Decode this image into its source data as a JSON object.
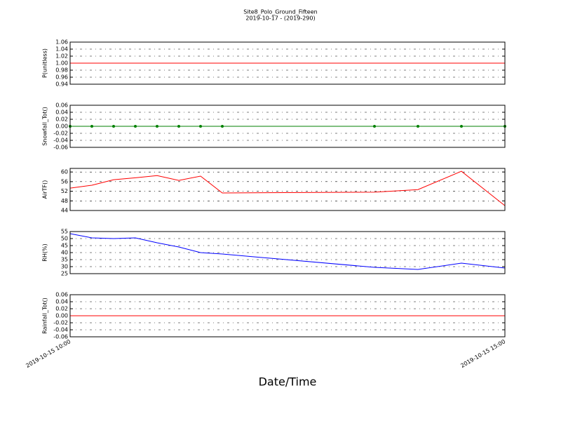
{
  "title": "Site8_Polo_Ground_Fifteen",
  "subtitle": "2019-10-17 - (2019-290)",
  "xlabel": "Date/Time",
  "chart_data": [
    {
      "type": "line",
      "ylabel": "P(unitless)",
      "color": "#ff0000",
      "grid": true,
      "markers": false,
      "x": [
        "2019-10-15 10:00",
        "2019-10-15 10:15",
        "2019-10-15 10:30",
        "2019-10-15 10:45",
        "2019-10-15 11:00",
        "2019-10-15 11:15",
        "2019-10-15 11:30",
        "2019-10-15 11:45",
        "2019-10-15 13:30",
        "2019-10-15 14:00",
        "2019-10-15 14:30",
        "2019-10-15 15:00"
      ],
      "values": [
        1,
        1,
        1,
        1,
        1,
        1,
        1,
        1,
        1,
        1,
        1,
        1
      ],
      "xlim": [
        "2019-10-15 10:00",
        "2019-10-15 15:00"
      ],
      "ylim": [
        0.94,
        1.06
      ],
      "yticks": [
        {
          "value": 0.94,
          "label": "0.94"
        },
        {
          "value": 0.96,
          "label": "0.96"
        },
        {
          "value": 0.98,
          "label": "0.98"
        },
        {
          "value": 1,
          "label": "1.00"
        },
        {
          "value": 1.02,
          "label": "1.02"
        },
        {
          "value": 1.04,
          "label": "1.04"
        },
        {
          "value": 1.06,
          "label": "1.06"
        }
      ]
    },
    {
      "type": "line",
      "ylabel": "Snowfall_Tot()",
      "color": "#008000",
      "grid": true,
      "markers": true,
      "x": [
        "2019-10-15 10:00",
        "2019-10-15 10:15",
        "2019-10-15 10:30",
        "2019-10-15 10:45",
        "2019-10-15 11:00",
        "2019-10-15 11:15",
        "2019-10-15 11:30",
        "2019-10-15 11:45",
        "2019-10-15 13:30",
        "2019-10-15 14:00",
        "2019-10-15 14:30",
        "2019-10-15 15:00"
      ],
      "values": [
        0,
        0,
        0,
        0,
        0,
        0,
        0,
        0,
        0,
        0,
        0,
        0
      ],
      "xlim": [
        "2019-10-15 10:00",
        "2019-10-15 15:00"
      ],
      "ylim": [
        -0.06,
        0.06
      ],
      "yticks": [
        {
          "value": -0.06,
          "label": "-0.06"
        },
        {
          "value": -0.04,
          "label": "-0.04"
        },
        {
          "value": -0.02,
          "label": "-0.02"
        },
        {
          "value": 0,
          "label": "0.00"
        },
        {
          "value": 0.02,
          "label": "0.02"
        },
        {
          "value": 0.04,
          "label": "0.04"
        },
        {
          "value": 0.06,
          "label": "0.06"
        }
      ]
    },
    {
      "type": "line",
      "ylabel": "AirTF()",
      "color": "#ff0000",
      "grid": true,
      "markers": false,
      "x": [
        "2019-10-15 10:00",
        "2019-10-15 10:15",
        "2019-10-15 10:30",
        "2019-10-15 10:45",
        "2019-10-15 11:00",
        "2019-10-15 11:15",
        "2019-10-15 11:30",
        "2019-10-15 11:45",
        "2019-10-15 13:30",
        "2019-10-15 14:00",
        "2019-10-15 14:30",
        "2019-10-15 15:00"
      ],
      "values": [
        53.3,
        54.5,
        56.8,
        57.6,
        58.5,
        56.5,
        58.3,
        51.3,
        51.6,
        52.7,
        60.3,
        46.0
      ],
      "xlim": [
        "2019-10-15 10:00",
        "2019-10-15 15:00"
      ],
      "ylim": [
        44,
        61.5
      ],
      "yticks": [
        44,
        48,
        52,
        56,
        60
      ]
    },
    {
      "type": "line",
      "ylabel": "RH(%)",
      "color": "#0000ff",
      "grid": true,
      "markers": false,
      "x": [
        "2019-10-15 10:00",
        "2019-10-15 10:15",
        "2019-10-15 10:30",
        "2019-10-15 10:45",
        "2019-10-15 11:00",
        "2019-10-15 11:15",
        "2019-10-15 11:30",
        "2019-10-15 11:45",
        "2019-10-15 13:30",
        "2019-10-15 14:00",
        "2019-10-15 14:30",
        "2019-10-15 15:00"
      ],
      "values": [
        53.5,
        50.5,
        50,
        50.5,
        47,
        44,
        40,
        39,
        29.5,
        28,
        32.5,
        29
      ],
      "xlim": [
        "2019-10-15 10:00",
        "2019-10-15 15:00"
      ],
      "ylim": [
        25,
        55
      ],
      "yticks": [
        25,
        30,
        35,
        40,
        45,
        50,
        55
      ]
    },
    {
      "type": "line",
      "ylabel": "Rainfall_Tot()",
      "color": "#ff0000",
      "grid": true,
      "markers": false,
      "x": [
        "2019-10-15 10:00",
        "2019-10-15 10:15",
        "2019-10-15 10:30",
        "2019-10-15 10:45",
        "2019-10-15 11:00",
        "2019-10-15 11:15",
        "2019-10-15 11:30",
        "2019-10-15 11:45",
        "2019-10-15 13:30",
        "2019-10-15 14:00",
        "2019-10-15 14:30",
        "2019-10-15 15:00"
      ],
      "values": [
        0,
        0,
        0,
        0,
        0,
        0,
        0,
        0,
        0,
        0,
        0,
        0
      ],
      "xlim": [
        "2019-10-15 10:00",
        "2019-10-15 15:00"
      ],
      "ylim": [
        -0.06,
        0.06
      ],
      "yticks": [
        {
          "value": -0.06,
          "label": "-0.06"
        },
        {
          "value": -0.04,
          "label": "-0.04"
        },
        {
          "value": -0.02,
          "label": "-0.02"
        },
        {
          "value": 0,
          "label": "0.00"
        },
        {
          "value": 0.02,
          "label": "0.02"
        },
        {
          "value": 0.04,
          "label": "0.04"
        },
        {
          "value": 0.06,
          "label": "0.06"
        }
      ],
      "xticks": [
        "2019-10-15 10:00",
        "2019-10-15 15:00"
      ]
    }
  ]
}
